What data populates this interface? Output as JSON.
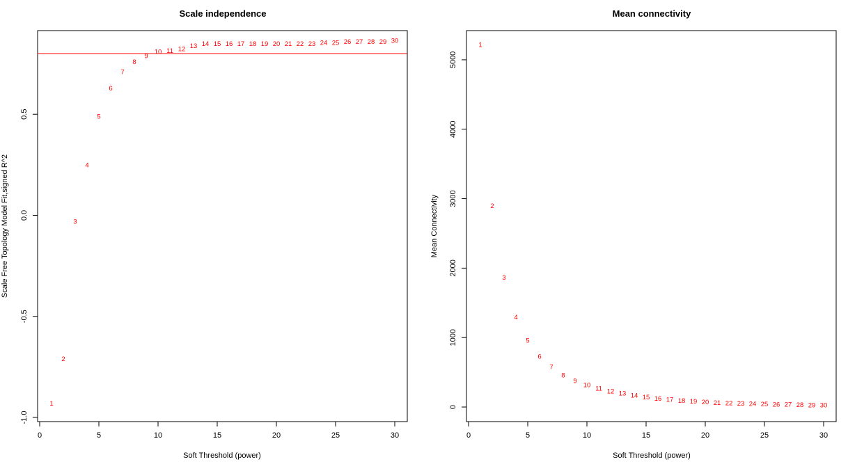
{
  "chart_data": [
    {
      "type": "scatter",
      "title": "Scale independence",
      "xlabel": "Soft Threshold (power)",
      "ylabel": "Scale Free Topology Model Fit,signed R^2",
      "xlim": [
        0,
        30
      ],
      "ylim": [
        -1.0,
        0.9
      ],
      "xticks": [
        0,
        5,
        10,
        15,
        20,
        25,
        30
      ],
      "yticks": [
        -1.0,
        -0.5,
        0.0,
        0.5
      ],
      "ytick_labels": [
        "-1.0",
        "-0.5",
        "0.0",
        "0.5"
      ],
      "point_color": "#ff0000",
      "hline": {
        "y": 0.8,
        "color": "#ff0000"
      },
      "points": [
        {
          "x": 1,
          "y": -0.93
        },
        {
          "x": 2,
          "y": -0.71
        },
        {
          "x": 3,
          "y": -0.03
        },
        {
          "x": 4,
          "y": 0.25
        },
        {
          "x": 5,
          "y": 0.49
        },
        {
          "x": 6,
          "y": 0.63
        },
        {
          "x": 7,
          "y": 0.71
        },
        {
          "x": 8,
          "y": 0.76
        },
        {
          "x": 9,
          "y": 0.79
        },
        {
          "x": 10,
          "y": 0.81
        },
        {
          "x": 11,
          "y": 0.815
        },
        {
          "x": 12,
          "y": 0.825
        },
        {
          "x": 13,
          "y": 0.84
        },
        {
          "x": 14,
          "y": 0.85
        },
        {
          "x": 15,
          "y": 0.85
        },
        {
          "x": 16,
          "y": 0.85
        },
        {
          "x": 17,
          "y": 0.85
        },
        {
          "x": 18,
          "y": 0.85
        },
        {
          "x": 19,
          "y": 0.85
        },
        {
          "x": 20,
          "y": 0.85
        },
        {
          "x": 21,
          "y": 0.85
        },
        {
          "x": 22,
          "y": 0.85
        },
        {
          "x": 23,
          "y": 0.85
        },
        {
          "x": 24,
          "y": 0.855
        },
        {
          "x": 25,
          "y": 0.855
        },
        {
          "x": 26,
          "y": 0.86
        },
        {
          "x": 27,
          "y": 0.86
        },
        {
          "x": 28,
          "y": 0.86
        },
        {
          "x": 29,
          "y": 0.86
        },
        {
          "x": 30,
          "y": 0.865
        }
      ]
    },
    {
      "type": "scatter",
      "title": "Mean connectivity",
      "xlabel": "Soft Threshold (power)",
      "ylabel": "Mean Connectivity",
      "xlim": [
        0,
        30
      ],
      "ylim": [
        -150,
        5380
      ],
      "xticks": [
        0,
        5,
        10,
        15,
        20,
        25,
        30
      ],
      "yticks": [
        0,
        1000,
        2000,
        3000,
        4000,
        5000
      ],
      "ytick_labels": [
        "0",
        "1000",
        "2000",
        "3000",
        "4000",
        "5000"
      ],
      "point_color": "#ff0000",
      "points": [
        {
          "x": 1,
          "y": 5220
        },
        {
          "x": 2,
          "y": 2900
        },
        {
          "x": 3,
          "y": 1870
        },
        {
          "x": 4,
          "y": 1300
        },
        {
          "x": 5,
          "y": 960
        },
        {
          "x": 6,
          "y": 730
        },
        {
          "x": 7,
          "y": 580
        },
        {
          "x": 8,
          "y": 460
        },
        {
          "x": 9,
          "y": 380
        },
        {
          "x": 10,
          "y": 320
        },
        {
          "x": 11,
          "y": 270
        },
        {
          "x": 12,
          "y": 230
        },
        {
          "x": 13,
          "y": 200
        },
        {
          "x": 14,
          "y": 170
        },
        {
          "x": 15,
          "y": 145
        },
        {
          "x": 16,
          "y": 125
        },
        {
          "x": 17,
          "y": 110
        },
        {
          "x": 18,
          "y": 95
        },
        {
          "x": 19,
          "y": 85
        },
        {
          "x": 20,
          "y": 75
        },
        {
          "x": 21,
          "y": 65
        },
        {
          "x": 22,
          "y": 60
        },
        {
          "x": 23,
          "y": 55
        },
        {
          "x": 24,
          "y": 50
        },
        {
          "x": 25,
          "y": 45
        },
        {
          "x": 26,
          "y": 40
        },
        {
          "x": 27,
          "y": 38
        },
        {
          "x": 28,
          "y": 35
        },
        {
          "x": 29,
          "y": 32
        },
        {
          "x": 30,
          "y": 30
        }
      ]
    }
  ]
}
